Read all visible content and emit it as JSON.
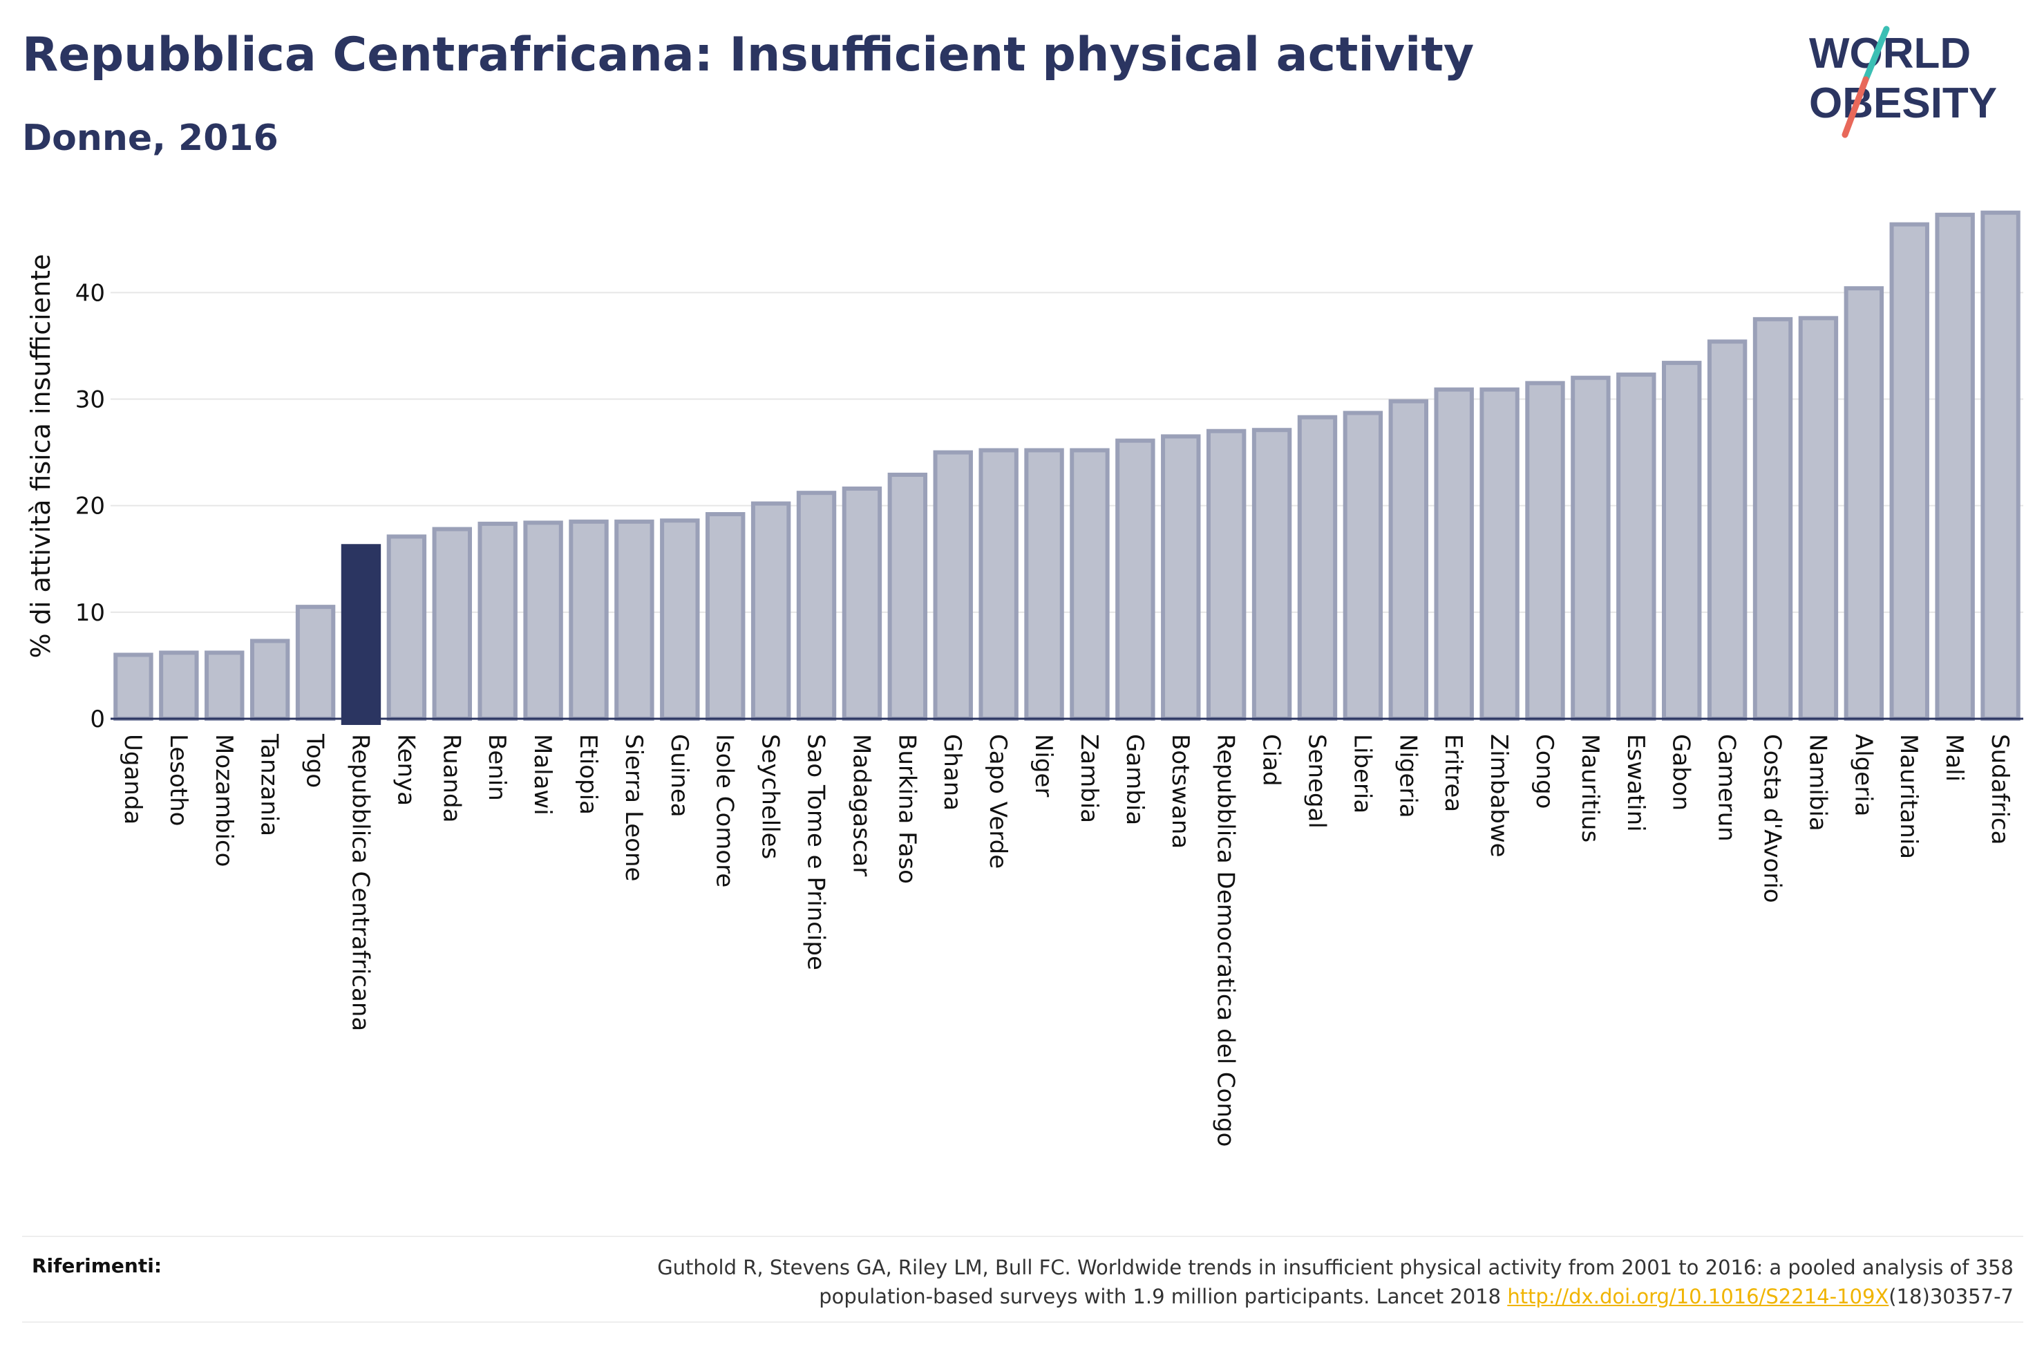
{
  "header": {
    "title": "Repubblica Centrafricana: Insufficient physical activity",
    "subtitle": "Donne, 2016"
  },
  "logo": {
    "line1": "WORLD",
    "line2": "OBESITY",
    "text_color": "#2b3561",
    "slash_top_color": "#3bbfb4",
    "slash_bottom_color": "#e8685a"
  },
  "colors": {
    "bar_default": "#bcc0ce",
    "bar_border": "#9aa0b8",
    "bar_highlight": "#2b3561",
    "grid": "#e6e6e6",
    "axis": "#2b3561",
    "text": "#2b3561"
  },
  "chart_data": {
    "type": "bar",
    "title": "Repubblica Centrafricana: Insufficient physical activity",
    "subtitle": "Donne, 2016",
    "xlabel": "",
    "ylabel": "% di attività fisica insufficiente",
    "ylim": [
      0,
      48
    ],
    "yticks": [
      0,
      10,
      20,
      30,
      40
    ],
    "grid": true,
    "highlight": "Repubblica Centrafricana",
    "categories": [
      "Uganda",
      "Lesotho",
      "Mozambico",
      "Tanzania",
      "Togo",
      "Repubblica Centrafricana",
      "Kenya",
      "Ruanda",
      "Benin",
      "Malawi",
      "Etiopia",
      "Sierra Leone",
      "Guinea",
      "Isole Comore",
      "Seychelles",
      "Sao Tome e Principe",
      "Madagascar",
      "Burkina Faso",
      "Ghana",
      "Capo Verde",
      "Niger",
      "Zambia",
      "Gambia",
      "Botswana",
      "Repubblica Democratica del Congo",
      "Ciad",
      "Senegal",
      "Liberia",
      "Nigeria",
      "Eritrea",
      "Zimbabwe",
      "Congo",
      "Mauritius",
      "Eswatini",
      "Gabon",
      "Camerun",
      "Costa d'Avorio",
      "Namibia",
      "Algeria",
      "Mauritania",
      "Mali",
      "Sudafrica"
    ],
    "values": [
      6.0,
      6.2,
      6.2,
      7.3,
      10.5,
      16.2,
      17.1,
      17.8,
      18.3,
      18.4,
      18.5,
      18.5,
      18.6,
      19.2,
      20.2,
      21.2,
      21.6,
      22.9,
      25.0,
      25.2,
      25.2,
      25.2,
      26.1,
      26.5,
      27.0,
      27.1,
      28.3,
      28.7,
      29.8,
      30.9,
      30.9,
      31.5,
      32.0,
      32.3,
      33.4,
      35.4,
      37.5,
      37.6,
      40.4,
      46.4,
      47.3,
      47.5
    ]
  },
  "references": {
    "label": "Riferimenti:",
    "line1": "Guthold R, Stevens GA, Riley LM, Bull FC. Worldwide trends in insufficient physical activity from 2001 to 2016: a pooled analysis of 358",
    "line2_prefix": "population-based surveys with 1.9 million participants. Lancet 2018 ",
    "link": "http://dx.doi.org/10.1016/S2214-109X",
    "line2_suffix": "(18)30357-7"
  }
}
